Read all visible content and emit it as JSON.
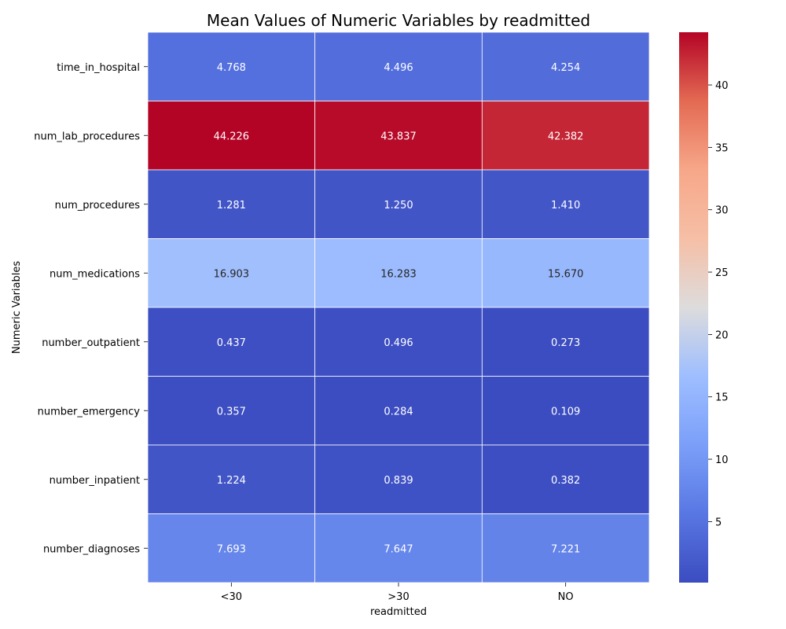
{
  "chart_data": {
    "type": "heatmap",
    "title": "Mean Values of Numeric Variables by readmitted",
    "xlabel": "readmitted",
    "ylabel": "Numeric Variables",
    "columns": [
      "<30",
      ">30",
      "NO"
    ],
    "rows": [
      "time_in_hospital",
      "num_lab_procedures",
      "num_procedures",
      "num_medications",
      "number_outpatient",
      "number_emergency",
      "number_inpatient",
      "number_diagnoses"
    ],
    "values": [
      [
        4.768,
        4.496,
        4.254
      ],
      [
        44.226,
        43.837,
        42.382
      ],
      [
        1.281,
        1.25,
        1.41
      ],
      [
        16.903,
        16.283,
        15.67
      ],
      [
        0.437,
        0.496,
        0.273
      ],
      [
        0.357,
        0.284,
        0.109
      ],
      [
        1.224,
        0.839,
        0.382
      ],
      [
        7.693,
        7.647,
        7.221
      ]
    ],
    "value_labels": [
      [
        "4.768",
        "4.496",
        "4.254"
      ],
      [
        "44.226",
        "43.837",
        "42.382"
      ],
      [
        "1.281",
        "1.250",
        "1.410"
      ],
      [
        "16.903",
        "16.283",
        "15.670"
      ],
      [
        "0.437",
        "0.496",
        "0.273"
      ],
      [
        "0.357",
        "0.284",
        "0.109"
      ],
      [
        "1.224",
        "0.839",
        "0.382"
      ],
      [
        "7.693",
        "7.647",
        "7.221"
      ]
    ],
    "colormap": "coolwarm",
    "vmin": 0.109,
    "vmax": 44.226,
    "colorbar_ticks": [
      5,
      10,
      15,
      20,
      25,
      30,
      35,
      40
    ],
    "colorbar_tick_labels": [
      "5",
      "10",
      "15",
      "20",
      "25",
      "30",
      "35",
      "40"
    ],
    "annotations_on": true
  }
}
